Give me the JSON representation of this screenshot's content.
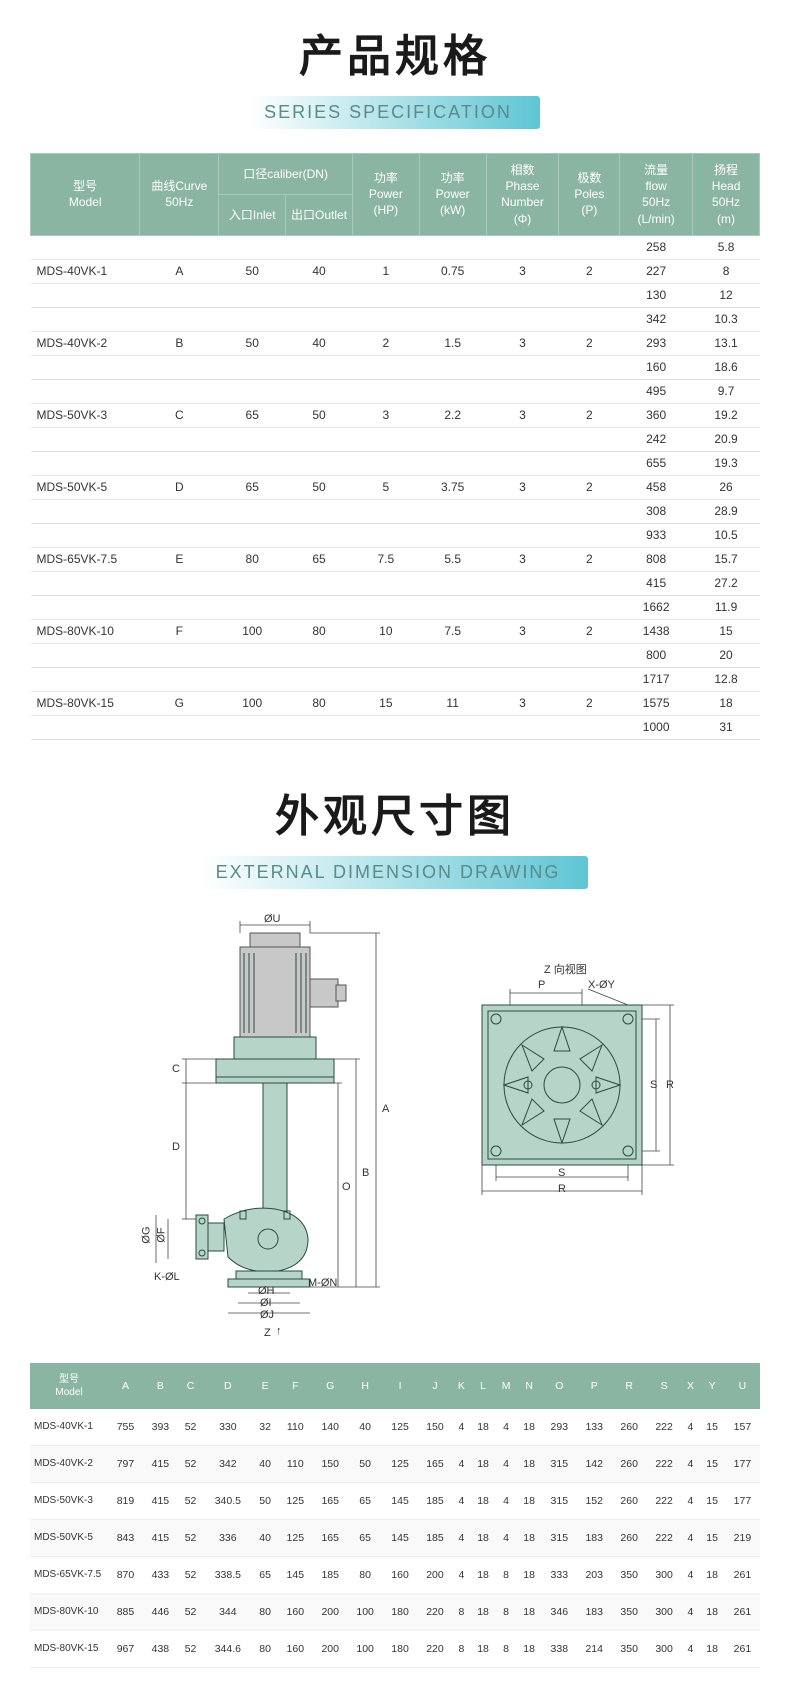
{
  "colors": {
    "header_bg": "#8bb5a3",
    "header_text": "#ffffff",
    "body_text": "#333333",
    "row_border": "#e6e6e6",
    "subtitle_grad_start": "#ffffff",
    "subtitle_grad_mid": "#9fdce5",
    "subtitle_grad_end": "#5ec5d4",
    "drawing_fill": "#b7d4c8",
    "drawing_stroke": "#2a4a42"
  },
  "section1": {
    "title_cn": "产品规格",
    "title_en": "SERIES SPECIFICATION",
    "headers": {
      "model": "型号\nModel",
      "curve": "曲线Curve\n50Hz",
      "caliber": "口径caliber(DN)",
      "inlet": "入口Inlet",
      "outlet": "出口Outlet",
      "power_hp": "功率\nPower\n(HP)",
      "power_kw": "功率\nPower\n(kW)",
      "phase": "相数\nPhase\nNumber\n(Φ)",
      "poles": "极数\nPoles\n(P)",
      "flow": "流量\nflow\n50Hz\n(L/min)",
      "head": "扬程\nHead\n50Hz\n(m)"
    },
    "rows": [
      {
        "model": "MDS-40VK-1",
        "curve": "A",
        "inlet": "50",
        "outlet": "40",
        "hp": "1",
        "kw": "0.75",
        "phase": "3",
        "poles": "2",
        "flow": [
          "258",
          "227",
          "130"
        ],
        "head": [
          "5.8",
          "8",
          "12"
        ]
      },
      {
        "model": "MDS-40VK-2",
        "curve": "B",
        "inlet": "50",
        "outlet": "40",
        "hp": "2",
        "kw": "1.5",
        "phase": "3",
        "poles": "2",
        "flow": [
          "342",
          "293",
          "160"
        ],
        "head": [
          "10.3",
          "13.1",
          "18.6"
        ]
      },
      {
        "model": "MDS-50VK-3",
        "curve": "C",
        "inlet": "65",
        "outlet": "50",
        "hp": "3",
        "kw": "2.2",
        "phase": "3",
        "poles": "2",
        "flow": [
          "495",
          "360",
          "242"
        ],
        "head": [
          "9.7",
          "19.2",
          "20.9"
        ]
      },
      {
        "model": "MDS-50VK-5",
        "curve": "D",
        "inlet": "65",
        "outlet": "50",
        "hp": "5",
        "kw": "3.75",
        "phase": "3",
        "poles": "2",
        "flow": [
          "655",
          "458",
          "308"
        ],
        "head": [
          "19.3",
          "26",
          "28.9"
        ]
      },
      {
        "model": "MDS-65VK-7.5",
        "curve": "E",
        "inlet": "80",
        "outlet": "65",
        "hp": "7.5",
        "kw": "5.5",
        "phase": "3",
        "poles": "2",
        "flow": [
          "933",
          "808",
          "415"
        ],
        "head": [
          "10.5",
          "15.7",
          "27.2"
        ]
      },
      {
        "model": "MDS-80VK-10",
        "curve": "F",
        "inlet": "100",
        "outlet": "80",
        "hp": "10",
        "kw": "7.5",
        "phase": "3",
        "poles": "2",
        "flow": [
          "1662",
          "1438",
          "800"
        ],
        "head": [
          "11.9",
          "15",
          "20"
        ]
      },
      {
        "model": "MDS-80VK-15",
        "curve": "G",
        "inlet": "100",
        "outlet": "80",
        "hp": "15",
        "kw": "11",
        "phase": "3",
        "poles": "2",
        "flow": [
          "1717",
          "1575",
          "1000"
        ],
        "head": [
          "12.8",
          "18",
          "31"
        ]
      }
    ]
  },
  "section2": {
    "title_cn": "外观尺寸图",
    "title_en": "EXTERNAL DIMENSION DRAWING",
    "labels": {
      "phiU": "ØU",
      "C": "C",
      "D": "D",
      "A": "A",
      "B": "B",
      "O": "O",
      "phiG": "ØG",
      "phiF": "ØF",
      "K_phiL": "K-ØL",
      "phiH": "ØH",
      "phiI": "ØI",
      "phiJ": "ØJ",
      "M_phiN": "M-ØN",
      "Z": "Z",
      "Zarrow": "↑",
      "Zview": "Z 向视图",
      "P": "P",
      "X_phiY": "X-ØY",
      "S": "S",
      "R": "R"
    },
    "dim_headers": [
      "型号\nModel",
      "A",
      "B",
      "C",
      "D",
      "E",
      "F",
      "G",
      "H",
      "I",
      "J",
      "K",
      "L",
      "M",
      "N",
      "O",
      "P",
      "R",
      "S",
      "X",
      "Y",
      "U"
    ],
    "dim_rows": [
      [
        "MDS-40VK-1",
        "755",
        "393",
        "52",
        "330",
        "32",
        "110",
        "140",
        "40",
        "125",
        "150",
        "4",
        "18",
        "4",
        "18",
        "293",
        "133",
        "260",
        "222",
        "4",
        "15",
        "157"
      ],
      [
        "MDS-40VK-2",
        "797",
        "415",
        "52",
        "342",
        "40",
        "110",
        "150",
        "50",
        "125",
        "165",
        "4",
        "18",
        "4",
        "18",
        "315",
        "142",
        "260",
        "222",
        "4",
        "15",
        "177"
      ],
      [
        "MDS-50VK-3",
        "819",
        "415",
        "52",
        "340.5",
        "50",
        "125",
        "165",
        "65",
        "145",
        "185",
        "4",
        "18",
        "4",
        "18",
        "315",
        "152",
        "260",
        "222",
        "4",
        "15",
        "177"
      ],
      [
        "MDS-50VK-5",
        "843",
        "415",
        "52",
        "336",
        "40",
        "125",
        "165",
        "65",
        "145",
        "185",
        "4",
        "18",
        "4",
        "18",
        "315",
        "183",
        "260",
        "222",
        "4",
        "15",
        "219"
      ],
      [
        "MDS-65VK-7.5",
        "870",
        "433",
        "52",
        "338.5",
        "65",
        "145",
        "185",
        "80",
        "160",
        "200",
        "4",
        "18",
        "8",
        "18",
        "333",
        "203",
        "350",
        "300",
        "4",
        "18",
        "261"
      ],
      [
        "MDS-80VK-10",
        "885",
        "446",
        "52",
        "344",
        "80",
        "160",
        "200",
        "100",
        "180",
        "220",
        "8",
        "18",
        "8",
        "18",
        "346",
        "183",
        "350",
        "300",
        "4",
        "18",
        "261"
      ],
      [
        "MDS-80VK-15",
        "967",
        "438",
        "52",
        "344.6",
        "80",
        "160",
        "200",
        "100",
        "180",
        "220",
        "8",
        "18",
        "8",
        "18",
        "338",
        "214",
        "350",
        "300",
        "4",
        "18",
        "261"
      ]
    ]
  }
}
